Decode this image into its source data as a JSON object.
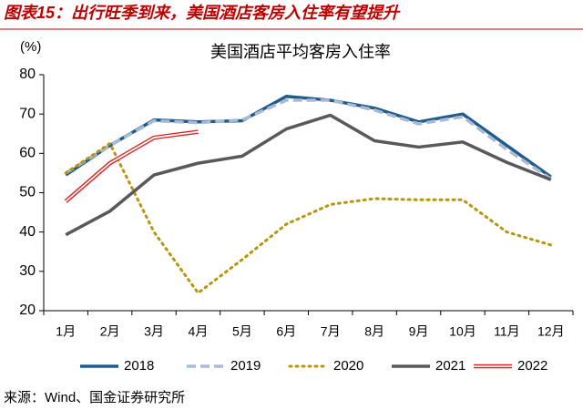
{
  "header": "图表15：出行旺季到来，美国酒店客房入住率有望提升",
  "source": "来源：Wind、国金证券研究所",
  "chart_data": {
    "type": "line",
    "title": "美国酒店平均客房入住率",
    "y_label": "(%)",
    "categories": [
      "1月",
      "2月",
      "3月",
      "4月",
      "5月",
      "6月",
      "7月",
      "8月",
      "9月",
      "10月",
      "11月",
      "12月"
    ],
    "series": [
      {
        "name": "2018",
        "color": "#1f5c8b",
        "style": "solid",
        "values": [
          54.5,
          62,
          68.5,
          68,
          68.3,
          74.5,
          73.5,
          71.5,
          68,
          70,
          62,
          54
        ]
      },
      {
        "name": "2019",
        "color": "#a9bad6",
        "style": "dashed",
        "values": [
          55,
          62,
          68.3,
          67.8,
          68.5,
          73.5,
          73.5,
          71,
          67.5,
          69.3,
          61,
          53.5
        ]
      },
      {
        "name": "2020",
        "color": "#b8960c",
        "style": "dotted",
        "values": [
          55,
          62.5,
          40,
          24.5,
          33,
          42,
          47,
          48.5,
          48.2,
          48.2,
          40,
          36.7
        ]
      },
      {
        "name": "2021",
        "color": "#595959",
        "style": "solid",
        "values": [
          39.3,
          45.3,
          54.5,
          57.5,
          59.3,
          66.2,
          69.7,
          63.2,
          61.6,
          62.9,
          57.7,
          53.3
        ]
      },
      {
        "name": "2022",
        "color": "#e02020",
        "style": "double",
        "values": [
          47.8,
          57.5,
          64,
          65.5,
          null,
          null,
          null,
          null,
          null,
          null,
          null,
          null
        ]
      }
    ],
    "ylim": [
      20,
      80
    ],
    "yticks": [
      20,
      30,
      40,
      50,
      60,
      70,
      80
    ],
    "grid": false,
    "legend": "bottom"
  }
}
